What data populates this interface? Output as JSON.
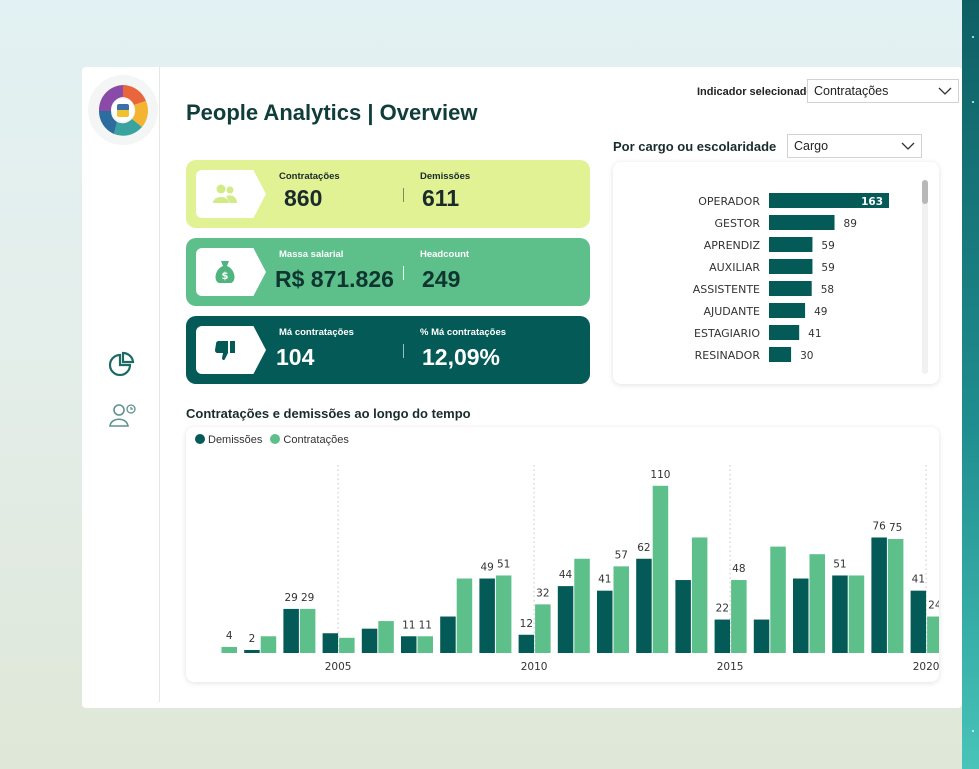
{
  "page": {
    "title": "People Analytics | Overview"
  },
  "indicator": {
    "label": "Indicador selecionado",
    "value": "Contratações"
  },
  "breakdown": {
    "label": "Por cargo ou escolaridade",
    "value": "Cargo"
  },
  "kpis": {
    "k1": {
      "a_label": "Contratações",
      "a_value": "860",
      "b_label": "Demissões",
      "b_value": "611",
      "icon": "people-icon"
    },
    "k2": {
      "a_label": "Massa salarial",
      "a_value": "R$ 871.826",
      "b_label": "Headcount",
      "b_value": "249",
      "icon": "money-bag-icon"
    },
    "k3": {
      "a_label": "Má contratações",
      "a_value": "104",
      "b_label": "% Má contratações",
      "b_value": "12,09%",
      "icon": "thumbs-down-icon"
    }
  },
  "time_chart": {
    "title": "Contratações e demissões ao longo do tempo"
  },
  "colors": {
    "demissoes": "#045a57",
    "contratacoes": "#5dbf8a",
    "kpi1": "#e0f293"
  },
  "chart_data": [
    {
      "type": "bar",
      "orientation": "horizontal",
      "categories": [
        "OPERADOR",
        "GESTOR",
        "APRENDIZ",
        "AUXILIAR",
        "ASSISTENTE",
        "AJUDANTE",
        "ESTAGIARIO",
        "RESINADOR"
      ],
      "values": [
        163,
        89,
        59,
        59,
        58,
        49,
        41,
        30
      ]
    },
    {
      "type": "bar",
      "title": "Contratações e demissões ao longo do tempo",
      "x": [
        2002,
        2003,
        2004,
        2005,
        2006,
        2007,
        2008,
        2009,
        2010,
        2011,
        2012,
        2013,
        2014,
        2015,
        2016,
        2017,
        2018,
        2019,
        2020
      ],
      "tick_labels": [
        "2005",
        "2010",
        "2015",
        "2020"
      ],
      "series": [
        {
          "name": "Demissões",
          "values": [
            null,
            2,
            29,
            13,
            16,
            11,
            24,
            49,
            12,
            44,
            41,
            62,
            48,
            22,
            22,
            49,
            51,
            76,
            41
          ]
        },
        {
          "name": "Contratações",
          "values": [
            4,
            11,
            29,
            10,
            21,
            11,
            49,
            51,
            32,
            62,
            57,
            110,
            76,
            48,
            70,
            65,
            51,
            75,
            24
          ]
        }
      ],
      "data_labels": {
        "Demissões": [
          null,
          "2",
          "29",
          null,
          null,
          "11",
          null,
          "49",
          "12",
          "44",
          "41",
          "62",
          null,
          "22",
          null,
          null,
          "51",
          "76",
          "41"
        ],
        "Contratações": [
          "4",
          null,
          "29",
          null,
          null,
          "11",
          null,
          "51",
          "32",
          null,
          "57",
          "110",
          null,
          "48",
          null,
          null,
          null,
          "75",
          "24"
        ]
      },
      "legend": "top-left"
    }
  ]
}
